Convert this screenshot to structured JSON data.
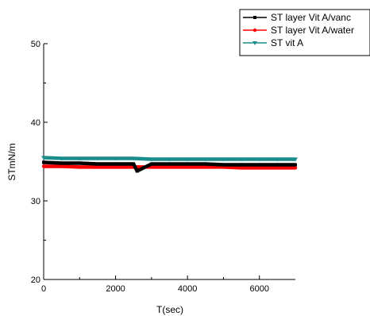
{
  "chart_data": {
    "type": "line",
    "title": "",
    "xlabel": "T(sec)",
    "ylabel": "STmN/m",
    "xlim": [
      0,
      7000
    ],
    "ylim": [
      20,
      50
    ],
    "x_ticks": [
      0,
      2000,
      4000,
      6000
    ],
    "y_ticks": [
      20,
      30,
      40,
      50
    ],
    "x_tick_labels": [
      "0",
      "2000",
      "4000",
      "6000"
    ],
    "y_tick_labels": [
      "20",
      "30",
      "40",
      "50"
    ],
    "grid": false,
    "legend_position": "top-right",
    "series": [
      {
        "name": "ST layer Vit A/vanc",
        "color": "#000000",
        "marker": "square",
        "x": [
          0,
          500,
          1000,
          1500,
          2000,
          2500,
          2600,
          3000,
          3500,
          4000,
          4500,
          5000,
          5500,
          6000,
          6500,
          7000
        ],
        "y": [
          34.9,
          34.8,
          34.8,
          34.7,
          34.7,
          34.7,
          33.8,
          34.7,
          34.7,
          34.7,
          34.7,
          34.6,
          34.6,
          34.6,
          34.6,
          34.6
        ]
      },
      {
        "name": "ST layer Vit A/water",
        "color": "#ff0000",
        "marker": "circle",
        "x": [
          0,
          500,
          1000,
          1500,
          2000,
          2500,
          3000,
          3500,
          4000,
          4500,
          5000,
          5500,
          6000,
          6500,
          7000
        ],
        "y": [
          34.4,
          34.4,
          34.3,
          34.3,
          34.3,
          34.3,
          34.3,
          34.3,
          34.3,
          34.3,
          34.3,
          34.2,
          34.2,
          34.2,
          34.2
        ]
      },
      {
        "name": "ST vit A",
        "color": "#1b8c8c",
        "marker": "triangle-down",
        "x": [
          0,
          500,
          1000,
          1500,
          2000,
          2500,
          3000,
          3500,
          4000,
          4500,
          5000,
          5500,
          6000,
          6500,
          7000
        ],
        "y": [
          35.5,
          35.4,
          35.4,
          35.4,
          35.4,
          35.4,
          35.3,
          35.3,
          35.3,
          35.3,
          35.3,
          35.3,
          35.3,
          35.3,
          35.3
        ]
      }
    ]
  }
}
